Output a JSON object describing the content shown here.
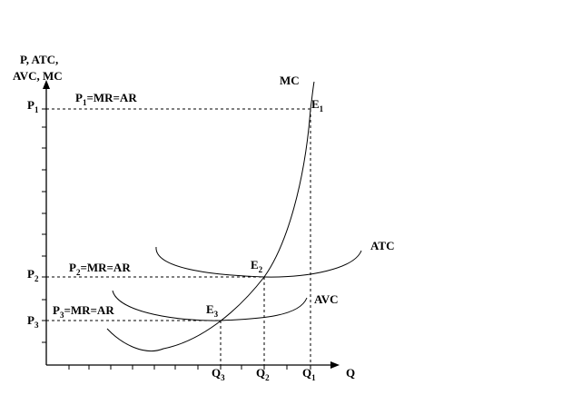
{
  "axes": {
    "y_label_line1": "P, ATC,",
    "y_label_line2": "AVC, MC",
    "x_label": "Q"
  },
  "curves": {
    "mc": "MC",
    "atc": "ATC",
    "avc": "AVC"
  },
  "points": {
    "e1": {
      "main": "E",
      "sub": "1"
    },
    "e2": {
      "main": "E",
      "sub": "2"
    },
    "e3": {
      "main": "E",
      "sub": "3"
    }
  },
  "price_levels": [
    {
      "main": "P",
      "sub": "1"
    },
    {
      "main": "P",
      "sub": "2"
    },
    {
      "main": "P",
      "sub": "3"
    }
  ],
  "price_lines": [
    {
      "p": "P",
      "sub": "1",
      "rest": "=MR=AR"
    },
    {
      "p": "P",
      "sub": "2",
      "rest": "=MR=AR"
    },
    {
      "p": "P",
      "sub": "3",
      "rest": "=MR=AR"
    }
  ],
  "quantities": [
    {
      "main": "Q",
      "sub": "3"
    },
    {
      "main": "Q",
      "sub": "2"
    },
    {
      "main": "Q",
      "sub": "1"
    }
  ]
}
